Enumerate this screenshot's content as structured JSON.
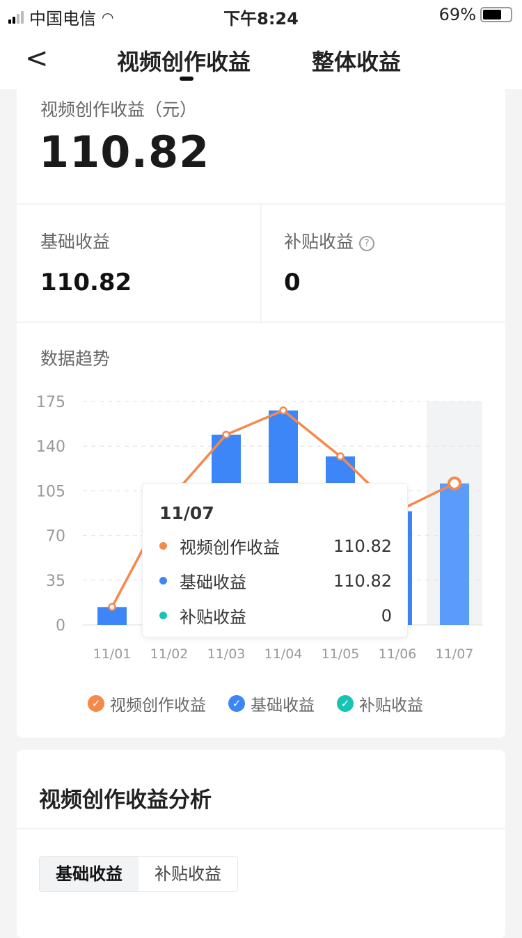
{
  "status": {
    "carrier": "中国电信",
    "time": "下午8:24",
    "battery": "69%",
    "battery_level": 0.69
  },
  "nav": {
    "tabs": [
      "视频创作收益",
      "整体收益"
    ],
    "active": 0
  },
  "summary": {
    "label": "视频创作收益（元）",
    "value": "110.82",
    "basic_label": "基础收益",
    "basic_value": "110.82",
    "subsidy_label": "补贴收益",
    "subsidy_value": "0"
  },
  "trend": {
    "title": "数据趋势"
  },
  "chart_data": {
    "type": "bar+line",
    "categories": [
      "11/01",
      "11/02",
      "11/03",
      "11/04",
      "11/05",
      "11/06",
      "11/07"
    ],
    "yticks": [
      0,
      35,
      70,
      105,
      140,
      175
    ],
    "ylim": [
      0,
      175
    ],
    "grid": true,
    "legend": "bottom",
    "series": [
      {
        "name": "视频创作收益",
        "type": "line",
        "color": "#f5894c",
        "values": [
          14,
          98,
          149,
          168,
          132,
          89,
          110.82
        ]
      },
      {
        "name": "基础收益",
        "type": "bar",
        "color": "#3d86f8",
        "values": [
          14,
          98,
          149,
          168,
          132,
          89,
          110.82
        ]
      },
      {
        "name": "补贴收益",
        "type": "bar",
        "color": "#17c3b2",
        "values": [
          0,
          0,
          0,
          0,
          0,
          0,
          0
        ]
      }
    ],
    "highlighted": "11/07",
    "tooltip": {
      "date": "11/07",
      "rows": [
        {
          "name": "视频创作收益",
          "value": "110.82",
          "color": "#f5894c"
        },
        {
          "name": "基础收益",
          "value": "110.82",
          "color": "#3d86f8"
        },
        {
          "name": "补贴收益",
          "value": "0",
          "color": "#17c3b2"
        }
      ]
    }
  },
  "analysis": {
    "title": "视频创作收益分析",
    "tabs": [
      "基础收益",
      "补贴收益"
    ],
    "active": 0
  }
}
